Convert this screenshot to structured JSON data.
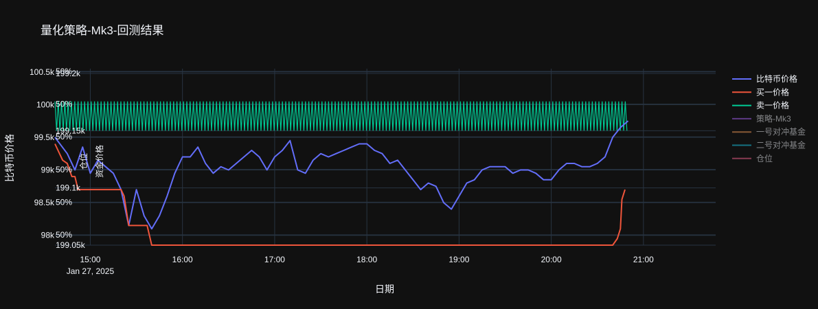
{
  "chart_data": {
    "type": "line",
    "title": "量化策略-Mk3-回测结果",
    "xlabel": "日期",
    "ylabel": "比特币价格",
    "x_ticks": [
      "15:00",
      "16:00",
      "17:00",
      "18:00",
      "19:00",
      "20:00",
      "21:00"
    ],
    "x_date_label": "Jan 27, 2025",
    "x_range": [
      "14:37",
      "21:47"
    ],
    "ylim": [
      97850,
      100550
    ],
    "y_ticks": [
      98000,
      98500,
      99000,
      99500,
      100000,
      100500
    ],
    "y_tick_labels": [
      "98k",
      "98.5k",
      "99k",
      "99.5k",
      "100k",
      "100.5k"
    ],
    "overlay_axes": [
      {
        "labels": [
          "50%",
          "50%",
          "50%",
          "50%",
          "50%",
          "50%"
        ]
      },
      {
        "labels": [
          "199.05k",
          "199.1k",
          "199.15k",
          "199.2k"
        ]
      }
    ],
    "overlay_vertical_labels": [
      "仓位",
      "资金价格"
    ],
    "grid": true,
    "legend_position": "right",
    "series": [
      {
        "name": "比特币价格",
        "color": "#636efa",
        "points": [
          [
            "14:37",
            99500
          ],
          [
            "14:45",
            99250
          ],
          [
            "14:50",
            99000
          ],
          [
            "14:55",
            99350
          ],
          [
            "15:00",
            98950
          ],
          [
            "15:05",
            99150
          ],
          [
            "15:10",
            99050
          ],
          [
            "15:15",
            98950
          ],
          [
            "15:20",
            98700
          ],
          [
            "15:25",
            98150
          ],
          [
            "15:30",
            98700
          ],
          [
            "15:35",
            98300
          ],
          [
            "15:40",
            98100
          ],
          [
            "15:45",
            98300
          ],
          [
            "15:50",
            98600
          ],
          [
            "15:55",
            98950
          ],
          [
            "16:00",
            99200
          ],
          [
            "16:05",
            99200
          ],
          [
            "16:10",
            99350
          ],
          [
            "16:15",
            99100
          ],
          [
            "16:20",
            98950
          ],
          [
            "16:25",
            99050
          ],
          [
            "16:30",
            99000
          ],
          [
            "16:35",
            99100
          ],
          [
            "16:40",
            99200
          ],
          [
            "16:45",
            99300
          ],
          [
            "16:50",
            99200
          ],
          [
            "16:55",
            99000
          ],
          [
            "17:00",
            99200
          ],
          [
            "17:05",
            99300
          ],
          [
            "17:10",
            99450
          ],
          [
            "17:15",
            99000
          ],
          [
            "17:20",
            98950
          ],
          [
            "17:25",
            99150
          ],
          [
            "17:30",
            99250
          ],
          [
            "17:35",
            99200
          ],
          [
            "17:40",
            99250
          ],
          [
            "17:45",
            99300
          ],
          [
            "17:50",
            99350
          ],
          [
            "17:55",
            99400
          ],
          [
            "18:00",
            99400
          ],
          [
            "18:05",
            99300
          ],
          [
            "18:10",
            99250
          ],
          [
            "18:15",
            99100
          ],
          [
            "18:20",
            99150
          ],
          [
            "18:25",
            99000
          ],
          [
            "18:30",
            98850
          ],
          [
            "18:35",
            98700
          ],
          [
            "18:40",
            98800
          ],
          [
            "18:45",
            98750
          ],
          [
            "18:50",
            98500
          ],
          [
            "18:55",
            98400
          ],
          [
            "19:00",
            98600
          ],
          [
            "19:05",
            98800
          ],
          [
            "19:10",
            98850
          ],
          [
            "19:15",
            99000
          ],
          [
            "19:20",
            99050
          ],
          [
            "19:25",
            99050
          ],
          [
            "19:30",
            99050
          ],
          [
            "19:35",
            98950
          ],
          [
            "19:40",
            99000
          ],
          [
            "19:45",
            99000
          ],
          [
            "19:50",
            98950
          ],
          [
            "19:55",
            98850
          ],
          [
            "20:00",
            98850
          ],
          [
            "20:05",
            99000
          ],
          [
            "20:10",
            99100
          ],
          [
            "20:15",
            99100
          ],
          [
            "20:20",
            99050
          ],
          [
            "20:25",
            99050
          ],
          [
            "20:30",
            99100
          ],
          [
            "20:35",
            99200
          ],
          [
            "20:40",
            99500
          ],
          [
            "20:45",
            99650
          ],
          [
            "20:50",
            99750
          ]
        ]
      },
      {
        "name": "买一价格",
        "color": "#ef553b",
        "points": [
          [
            "14:37",
            99400
          ],
          [
            "14:42",
            99150
          ],
          [
            "14:45",
            99100
          ],
          [
            "14:48",
            98900
          ],
          [
            "14:50",
            98900
          ],
          [
            "14:52",
            98700
          ],
          [
            "15:15",
            98700
          ],
          [
            "15:20",
            98700
          ],
          [
            "15:22",
            98600
          ],
          [
            "15:25",
            98150
          ],
          [
            "15:30",
            98150
          ],
          [
            "15:35",
            98150
          ],
          [
            "15:37",
            98150
          ],
          [
            "15:40",
            97850
          ],
          [
            "20:40",
            97850
          ],
          [
            "20:43",
            97950
          ],
          [
            "20:45",
            98100
          ],
          [
            "20:46",
            98550
          ],
          [
            "20:48",
            98700
          ]
        ]
      },
      {
        "name": "卖一价格",
        "color": "#00cc96",
        "band": {
          "low": 99600,
          "high": 100050,
          "start": "14:37",
          "end": "20:50"
        }
      },
      {
        "name": "策略-Mk3",
        "color": "#ab63fa",
        "hidden": true
      },
      {
        "name": "一号对冲基金",
        "color": "#ffa15a",
        "hidden": true
      },
      {
        "name": "二号对冲基金",
        "color": "#19d3f3",
        "hidden": true
      },
      {
        "name": "仓位",
        "color": "#ff6692",
        "hidden": true
      }
    ]
  }
}
